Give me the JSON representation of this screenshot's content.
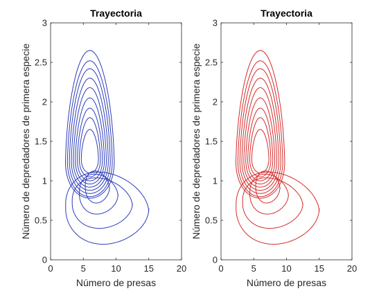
{
  "chart_data": [
    {
      "type": "line",
      "title": "Trayectoria",
      "xlabel": "Número de presas",
      "ylabel": "Número de depredadores de primera especie",
      "xlim": [
        0,
        20
      ],
      "ylim": [
        0,
        3
      ],
      "xticks": [
        "0",
        "5",
        "10",
        "15",
        "20"
      ],
      "yticks": [
        "0",
        "0.5",
        "1",
        "1.5",
        "2",
        "2.5",
        "3"
      ],
      "grid": false,
      "color": "#2b3bb8",
      "series": [
        {
          "kind": "orbit",
          "cx": 6.0,
          "cy": 1.3,
          "rx": 1.3,
          "top": 1.65,
          "bottom": 1.1
        },
        {
          "kind": "orbit",
          "cx": 6.0,
          "cy": 1.3,
          "rx": 1.6,
          "top": 1.8,
          "bottom": 1.05
        },
        {
          "kind": "orbit",
          "cx": 6.0,
          "cy": 1.3,
          "rx": 1.9,
          "top": 1.92,
          "bottom": 1.0
        },
        {
          "kind": "orbit",
          "cx": 6.0,
          "cy": 1.3,
          "rx": 2.2,
          "top": 2.05,
          "bottom": 0.96
        },
        {
          "kind": "orbit",
          "cx": 6.0,
          "cy": 1.3,
          "rx": 2.5,
          "top": 2.18,
          "bottom": 0.92
        },
        {
          "kind": "orbit",
          "cx": 6.0,
          "cy": 1.3,
          "rx": 2.8,
          "top": 2.3,
          "bottom": 0.88
        },
        {
          "kind": "orbit",
          "cx": 6.0,
          "cy": 1.3,
          "rx": 3.1,
          "top": 2.42,
          "bottom": 0.84
        },
        {
          "kind": "orbit",
          "cx": 6.0,
          "cy": 1.3,
          "rx": 3.4,
          "top": 2.52,
          "bottom": 0.8
        },
        {
          "kind": "orbit",
          "cx": 6.0,
          "cy": 1.3,
          "rx": 3.7,
          "top": 2.65,
          "bottom": 0.78
        },
        {
          "kind": "lobe",
          "xmin": 2.3,
          "xmax": 15.0,
          "ymin": 0.2,
          "ymax": 1.1
        },
        {
          "kind": "lobe",
          "xmin": 3.3,
          "xmax": 12.5,
          "ymin": 0.4,
          "ymax": 1.03
        },
        {
          "kind": "lobe",
          "xmin": 4.4,
          "xmax": 10.3,
          "ymin": 0.58,
          "ymax": 1.08
        },
        {
          "kind": "lobe",
          "xmin": 5.3,
          "xmax": 9.0,
          "ymin": 0.72,
          "ymax": 1.12
        }
      ]
    },
    {
      "type": "line",
      "title": "Trayectoria",
      "xlabel": "Número de presas",
      "ylabel": "Número de depredadores de primera especie",
      "xlim": [
        0,
        20
      ],
      "ylim": [
        0,
        3
      ],
      "xticks": [
        "0",
        "5",
        "10",
        "15",
        "20"
      ],
      "yticks": [
        "0",
        "0.5",
        "1",
        "1.5",
        "2",
        "2.5",
        "3"
      ],
      "grid": false,
      "color": "#d42a2a",
      "series": [
        {
          "kind": "orbit",
          "cx": 6.0,
          "cy": 1.3,
          "rx": 1.3,
          "top": 1.65,
          "bottom": 1.1
        },
        {
          "kind": "orbit",
          "cx": 6.0,
          "cy": 1.3,
          "rx": 1.6,
          "top": 1.8,
          "bottom": 1.05
        },
        {
          "kind": "orbit",
          "cx": 6.0,
          "cy": 1.3,
          "rx": 1.9,
          "top": 1.92,
          "bottom": 1.0
        },
        {
          "kind": "orbit",
          "cx": 6.0,
          "cy": 1.3,
          "rx": 2.2,
          "top": 2.05,
          "bottom": 0.96
        },
        {
          "kind": "orbit",
          "cx": 6.0,
          "cy": 1.3,
          "rx": 2.5,
          "top": 2.18,
          "bottom": 0.92
        },
        {
          "kind": "orbit",
          "cx": 6.0,
          "cy": 1.3,
          "rx": 2.8,
          "top": 2.3,
          "bottom": 0.88
        },
        {
          "kind": "orbit",
          "cx": 6.0,
          "cy": 1.3,
          "rx": 3.1,
          "top": 2.42,
          "bottom": 0.84
        },
        {
          "kind": "orbit",
          "cx": 6.0,
          "cy": 1.3,
          "rx": 3.4,
          "top": 2.52,
          "bottom": 0.8
        },
        {
          "kind": "orbit",
          "cx": 6.0,
          "cy": 1.3,
          "rx": 3.7,
          "top": 2.65,
          "bottom": 0.78
        },
        {
          "kind": "lobe",
          "xmin": 2.3,
          "xmax": 15.0,
          "ymin": 0.2,
          "ymax": 1.1
        },
        {
          "kind": "lobe",
          "xmin": 3.3,
          "xmax": 12.5,
          "ymin": 0.4,
          "ymax": 1.03
        },
        {
          "kind": "lobe",
          "xmin": 4.4,
          "xmax": 10.3,
          "ymin": 0.58,
          "ymax": 1.08
        },
        {
          "kind": "lobe",
          "xmin": 5.3,
          "xmax": 9.0,
          "ymin": 0.72,
          "ymax": 1.12
        }
      ]
    }
  ]
}
